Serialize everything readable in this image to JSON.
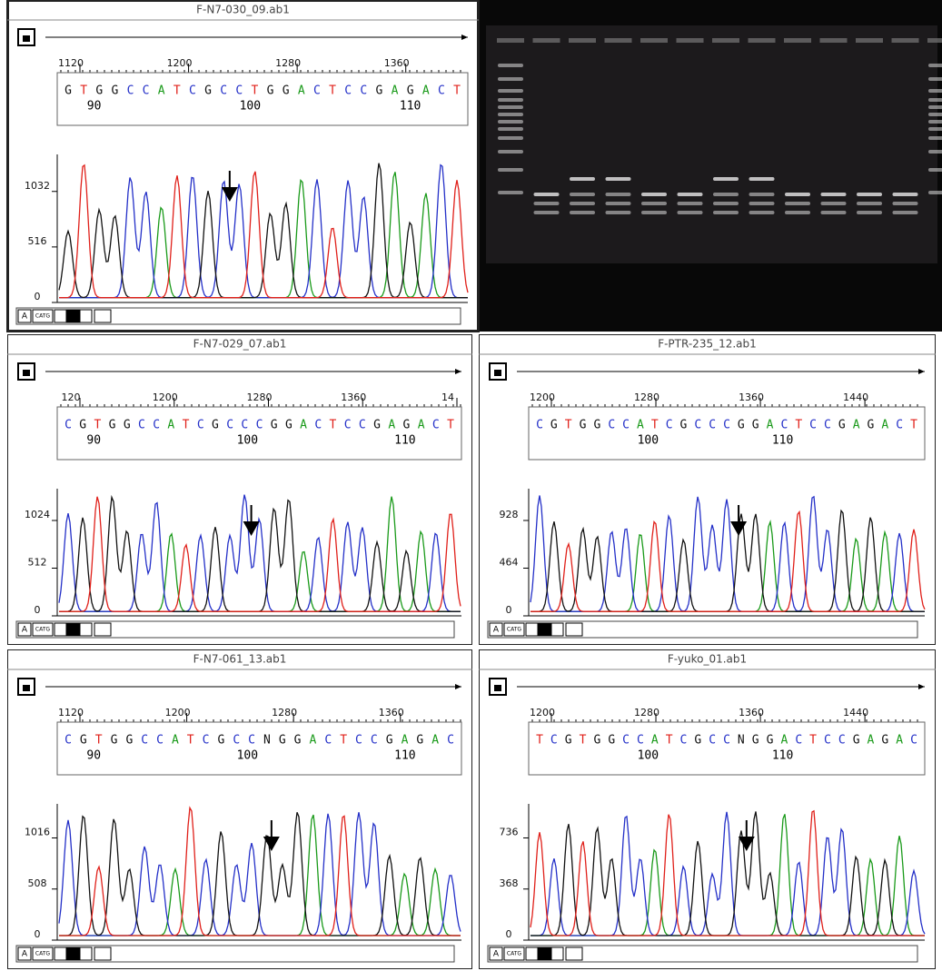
{
  "panels": [
    {
      "title": "F-N7-030_09.ab1",
      "ruler": [
        "1120",
        "1200",
        "1280",
        "1360"
      ],
      "bases": "GTGGCCATCGCCTGGACTCCGAGACT",
      "positions": [
        "90",
        "100",
        "110"
      ],
      "yticks": [
        "1032",
        "516",
        "0"
      ],
      "toolbar": [
        "A",
        "CATG"
      ]
    },
    {
      "title": "F-N7-029_07.ab1",
      "ruler": [
        "120",
        "1200",
        "1280",
        "1360",
        "14"
      ],
      "bases": "CGTGGCCATCGCCCGGACTCCGAGACT",
      "positions": [
        "90",
        "100",
        "110"
      ],
      "yticks": [
        "1024",
        "512",
        "0"
      ],
      "toolbar": [
        "A",
        "CATG"
      ]
    },
    {
      "title": "F-PTR-235_12.ab1",
      "ruler": [
        "1200",
        "1280",
        "1360",
        "1440"
      ],
      "bases": "CGTGGCCATCGCCCGGACTCCGAGACT",
      "positions": [
        "100",
        "110"
      ],
      "yticks": [
        "928",
        "464",
        "0"
      ],
      "toolbar": [
        "A",
        "CATG"
      ]
    },
    {
      "title": "F-N7-061_13.ab1",
      "ruler": [
        "1120",
        "1200",
        "1280",
        "1360"
      ],
      "bases": "CGTGGCCATCGCCNGGACTCCGAGAC",
      "positions": [
        "90",
        "100",
        "110"
      ],
      "yticks": [
        "1016",
        "508",
        "0"
      ],
      "toolbar": [
        "A",
        "CATG"
      ]
    },
    {
      "title": "F-yuko_01.ab1",
      "ruler": [
        "1200",
        "1280",
        "1360",
        "1440"
      ],
      "bases": "TCGTGGCCATCGCCNGGACTCCGAGAC",
      "positions": [
        "100",
        "110"
      ],
      "yticks": [
        "736",
        "368",
        "0"
      ],
      "toolbar": [
        "A",
        "CATG"
      ]
    }
  ]
}
